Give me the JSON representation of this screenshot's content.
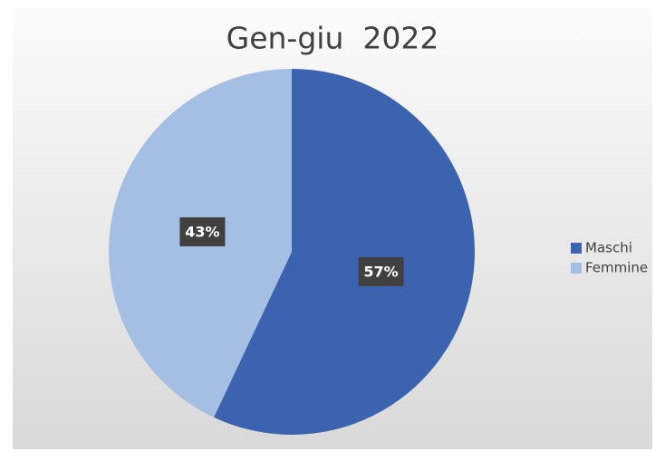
{
  "chart_data": {
    "type": "pie",
    "title": "Gen-giu  2022",
    "categories": [
      "Maschi",
      "Femmine"
    ],
    "values": [
      57,
      43
    ],
    "value_labels": [
      "57%",
      "43%"
    ],
    "colors": [
      "#3b63b0",
      "#a5bee4"
    ],
    "legend": "right"
  }
}
